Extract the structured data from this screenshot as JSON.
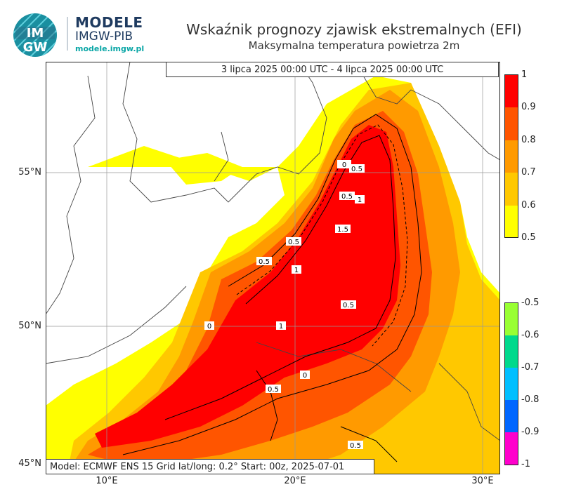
{
  "header": {
    "brand_line1": "MODELE",
    "brand_line2": "IMGW-PIB",
    "brand_url": "modele.imgw.pl",
    "logo_letters": [
      "IM",
      "GW"
    ],
    "title": "Wskaźnik prognozy zjawisk ekstremalnych (EFI)",
    "subtitle": "Maksymalna temperatura powietrza 2m"
  },
  "map": {
    "valid_period": "3 lipca 2025 00:00 UTC - 4 lipca 2025 00:00 UTC",
    "model_info": "Model: ECMWF  ENS 15  Grid lat/long: 0.2°  Start: 00z, 2025-07-01",
    "lat_labels": [
      "55°N",
      "50°N",
      "45°N"
    ],
    "lon_labels": [
      "10°E",
      "20°E",
      "30°E"
    ],
    "contour_labels": [
      "0",
      "0.5",
      "1",
      "1.5"
    ]
  },
  "colorbar_positive": {
    "labels": [
      "1",
      "0.9",
      "0.8",
      "0.7",
      "0.6",
      "0.5"
    ],
    "colors": [
      "#ff0000",
      "#ff5500",
      "#ff9a00",
      "#ffc800",
      "#ffff00"
    ]
  },
  "colorbar_negative": {
    "labels": [
      "-0.5",
      "-0.6",
      "-0.7",
      "-0.8",
      "-0.9",
      "-1"
    ],
    "colors": [
      "#99ff33",
      "#00d98c",
      "#00bfff",
      "#0066ff",
      "#ff00cc"
    ]
  }
}
